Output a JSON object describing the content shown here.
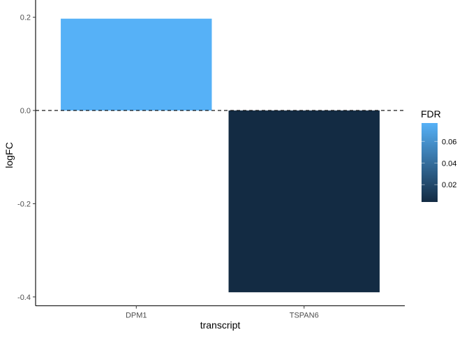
{
  "chart_data": {
    "type": "bar",
    "title": "",
    "xlabel": "transcript",
    "ylabel": "logFC",
    "categories": [
      "DPM1",
      "TSPAN6"
    ],
    "values": [
      0.197,
      -0.39
    ],
    "fill_values": [
      0.077,
      0.004
    ],
    "ylim": [
      -0.419,
      0.227
    ],
    "yticks": [
      0.2,
      0.0,
      -0.2,
      -0.4
    ],
    "ytick_labels": [
      "0.2",
      "0.0",
      "-0.2",
      "-0.4"
    ],
    "reference_line": {
      "y": 0,
      "style": "dashed"
    },
    "grid": false,
    "legend": {
      "title": "FDR",
      "placement": "right",
      "type": "colorbar",
      "range": [
        0.004,
        0.077
      ],
      "ticks": [
        0.02,
        0.04,
        0.06
      ],
      "tick_labels": [
        "0.02",
        "0.04",
        "0.06"
      ],
      "low_color": "#132B43",
      "high_color": "#56B1F7"
    }
  }
}
